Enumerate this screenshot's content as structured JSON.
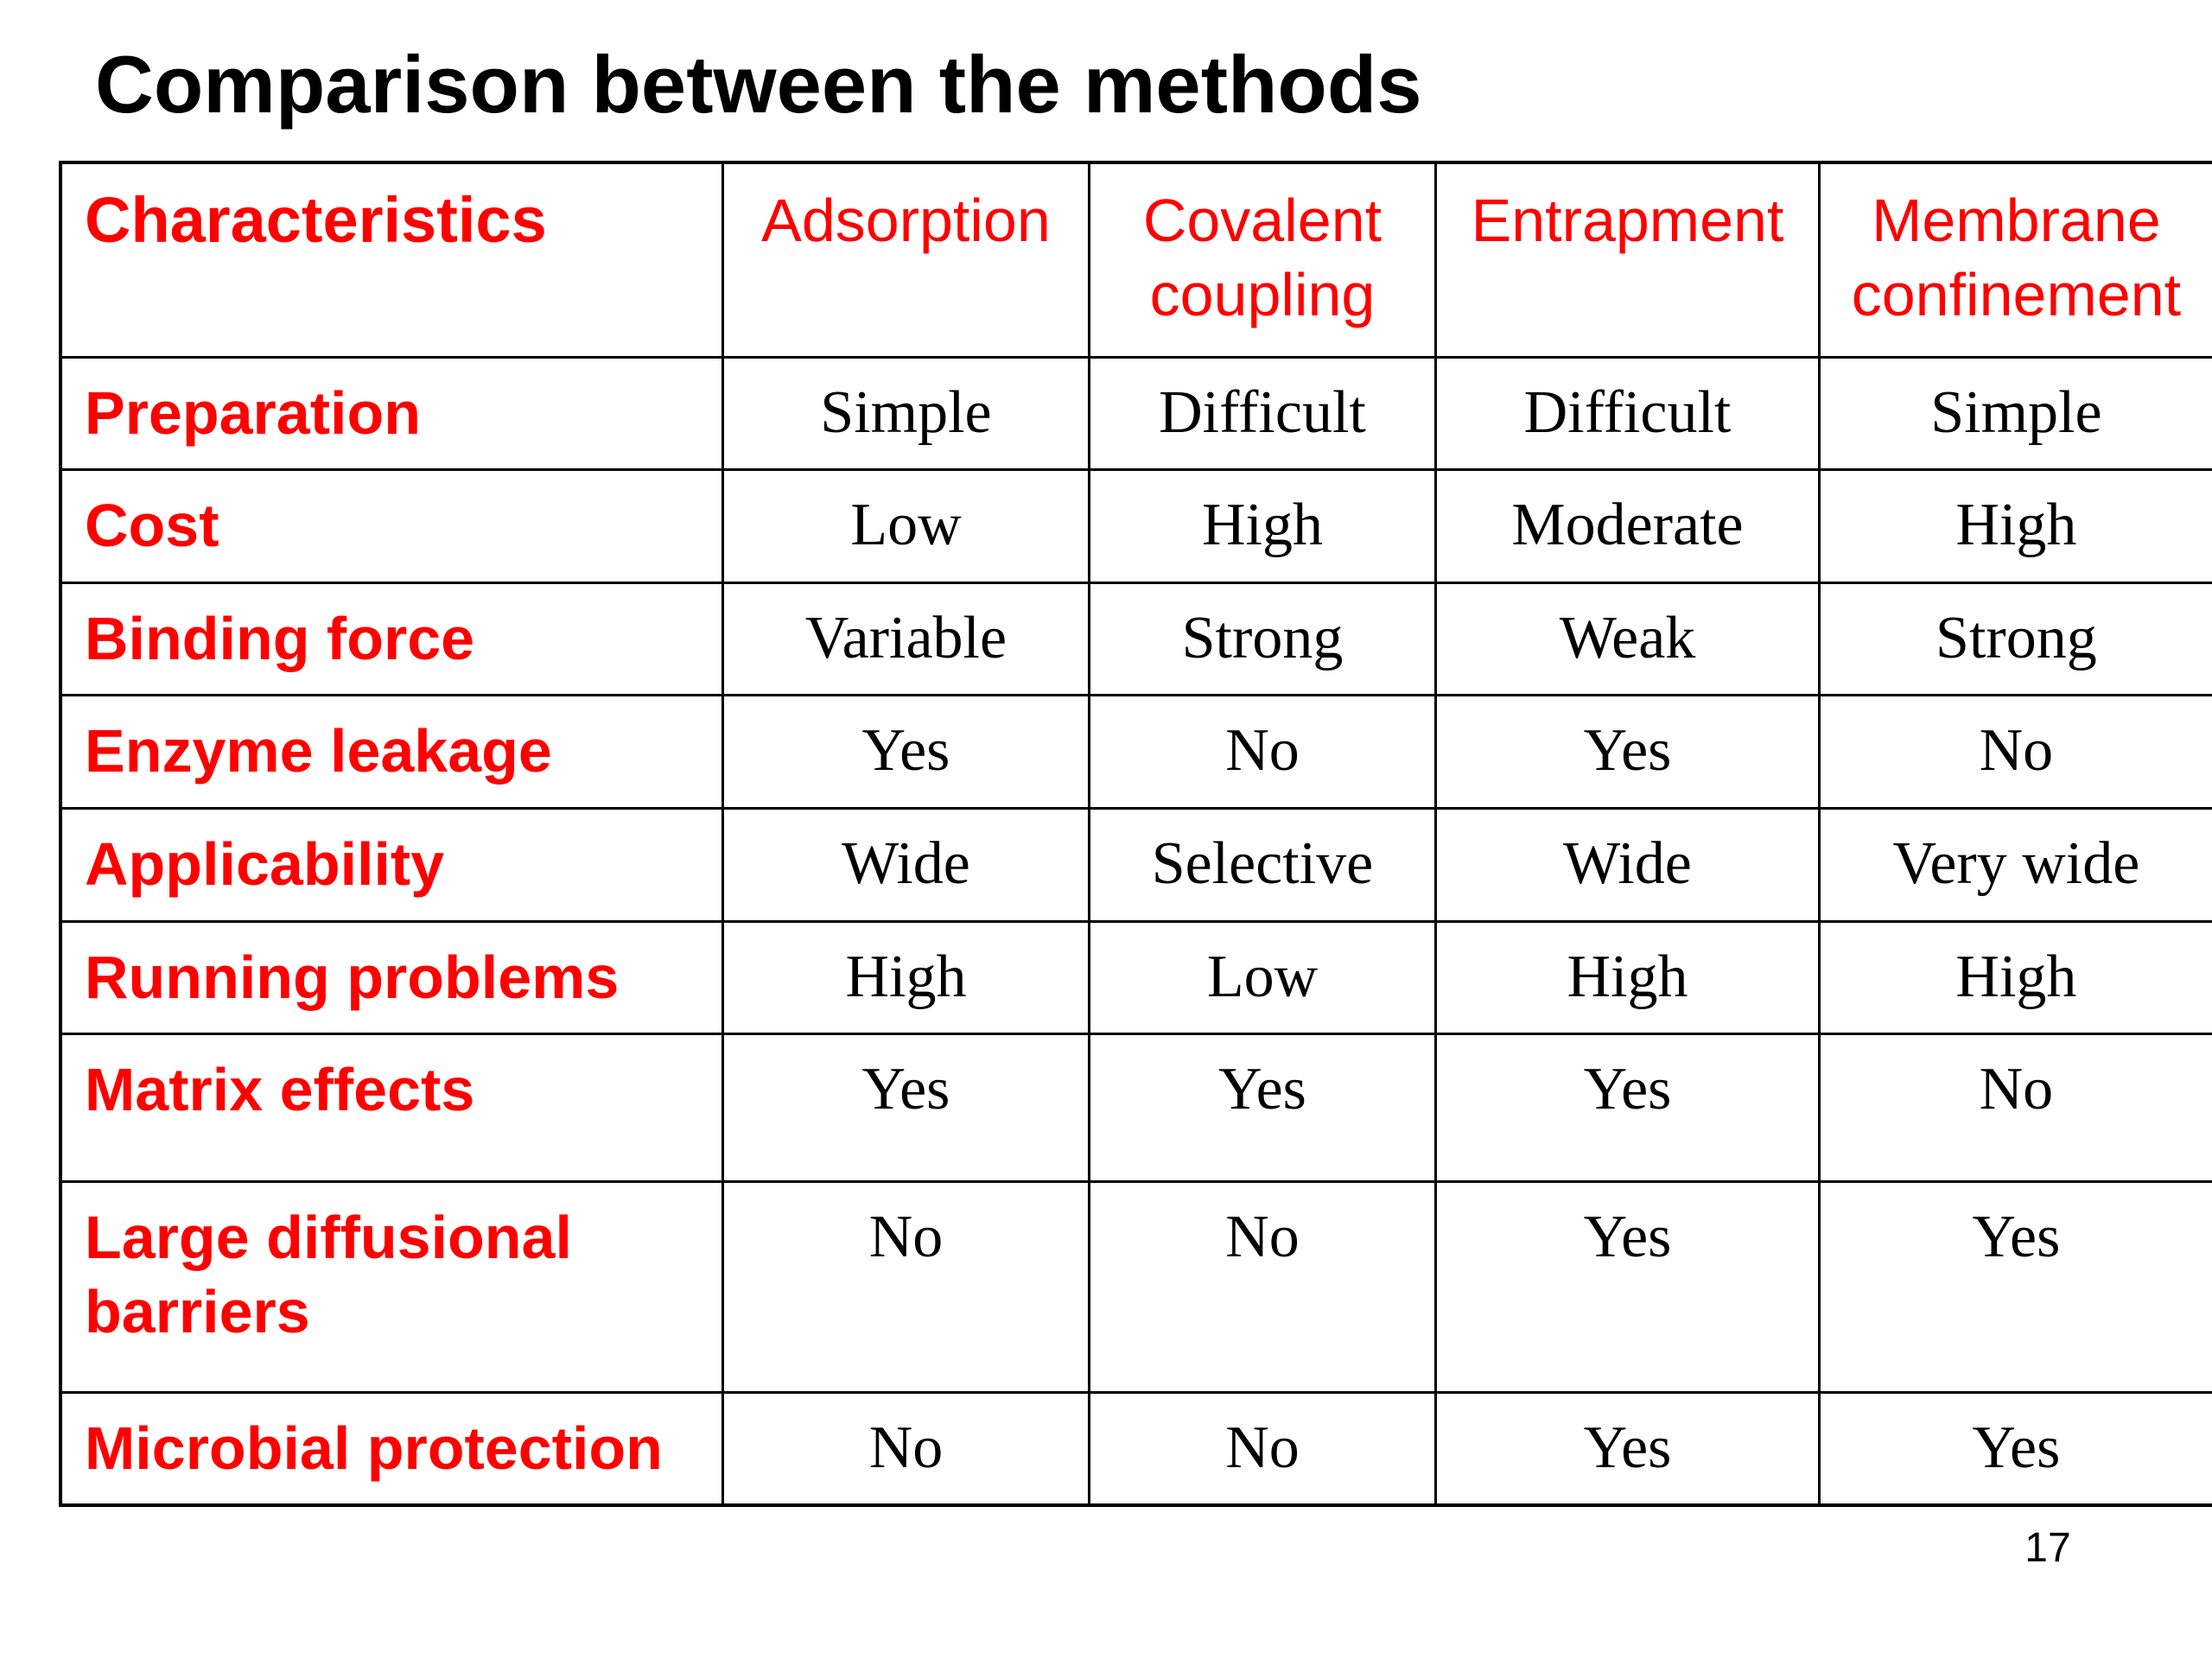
{
  "title": "Comparison between the methods",
  "table": {
    "header_label": "Characteristics",
    "columns": [
      "Adsorption",
      "Covalent coupling",
      "Entrapment",
      "Membrane confinement"
    ],
    "rows": [
      {
        "label": "Preparation",
        "values": [
          "Simple",
          "Difficult",
          "Difficult",
          "Simple"
        ]
      },
      {
        "label": "Cost",
        "values": [
          "Low",
          "High",
          "Moderate",
          "High"
        ]
      },
      {
        "label": "Binding force",
        "values": [
          "Variable",
          "Strong",
          "Weak",
          "Strong"
        ]
      },
      {
        "label": "Enzyme leakage",
        "values": [
          "Yes",
          "No",
          "Yes",
          "No"
        ]
      },
      {
        "label": "Applicability",
        "values": [
          "Wide",
          "Selective",
          "Wide",
          "Very wide"
        ]
      },
      {
        "label": "Running problems",
        "values": [
          "High",
          "Low",
          "High",
          "High"
        ]
      },
      {
        "label": "Matrix effects",
        "values": [
          "Yes",
          "Yes",
          "Yes",
          "No"
        ]
      },
      {
        "label": "Large diffusional barriers",
        "values": [
          "No",
          "No",
          "Yes",
          "Yes"
        ]
      },
      {
        "label": "Microbial protection",
        "values": [
          "No",
          "No",
          "Yes",
          "Yes"
        ]
      }
    ]
  },
  "page_number": "17"
}
